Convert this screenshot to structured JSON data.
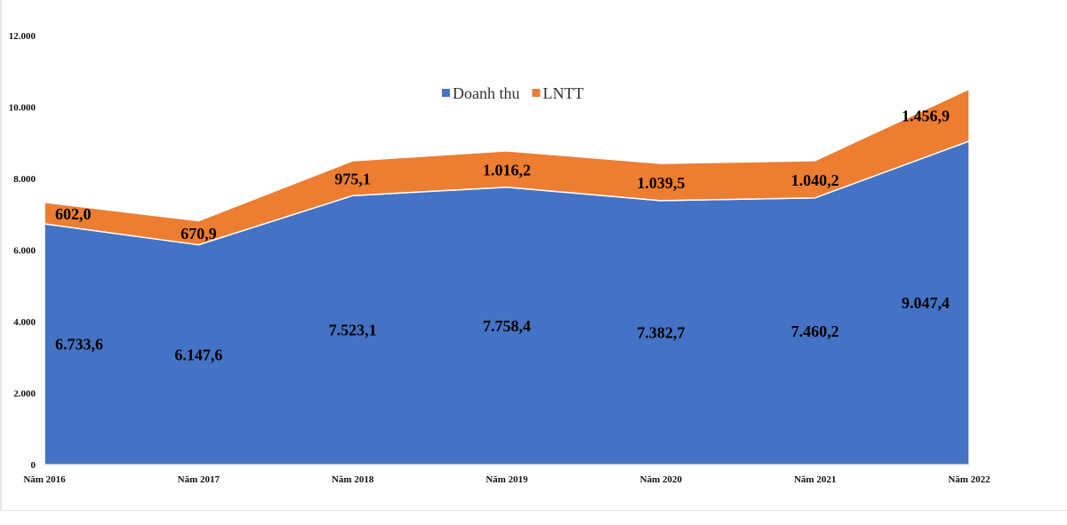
{
  "chart_data": {
    "type": "area",
    "stacked": true,
    "categories": [
      "Năm 2016",
      "Năm 2017",
      "Năm 2018",
      "Năm 2019",
      "Năm 2020",
      "Năm 2021",
      "Năm 2022"
    ],
    "series": [
      {
        "name": "Doanh thu",
        "color": "#4472C4",
        "values": [
          6733.6,
          6147.6,
          7523.1,
          7758.4,
          7382.7,
          7460.2,
          9047.4
        ],
        "labels": [
          "6.733,6",
          "6.147,6",
          "7.523,1",
          "7.758,4",
          "7.382,7",
          "7.460,2",
          "9.047,4"
        ]
      },
      {
        "name": "LNTT",
        "color": "#ED7D31",
        "values": [
          602.0,
          670.9,
          975.1,
          1016.2,
          1039.5,
          1040.2,
          1456.9
        ],
        "labels": [
          "602,0",
          "670,9",
          "975,1",
          "1.016,2",
          "1.039,5",
          "1.040,2",
          "1.456,9"
        ]
      }
    ],
    "ylim": [
      0,
      12000
    ],
    "yticks": [
      0,
      2000,
      4000,
      6000,
      8000,
      10000,
      12000
    ],
    "ytick_labels": [
      "0",
      "2.000",
      "4.000",
      "6.000",
      "8.000",
      "10.000",
      "12.000"
    ],
    "grid": false,
    "legend_position": "top-center",
    "title": "",
    "xlabel": "",
    "ylabel": ""
  }
}
